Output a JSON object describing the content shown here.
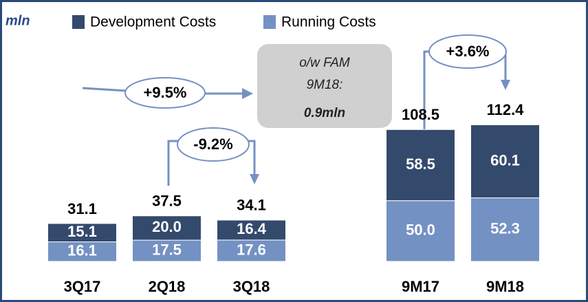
{
  "chart_data": {
    "type": "stacked_bar",
    "unit_label": "mln",
    "categories": [
      "3Q17",
      "2Q18",
      "3Q18",
      null,
      "9M17",
      "9M18"
    ],
    "series": [
      {
        "name": "Development Costs",
        "color": "#344a6c",
        "values": [
          15.1,
          20.0,
          16.4,
          null,
          58.5,
          60.1
        ],
        "value_labels": [
          "15.1",
          "20.0",
          "16.4",
          null,
          "58.5",
          "60.1"
        ]
      },
      {
        "name": "Running Costs",
        "color": "#7491c3",
        "values": [
          16.1,
          17.5,
          17.6,
          null,
          50.0,
          52.3
        ],
        "value_labels": [
          "16.1",
          "17.5",
          "17.6",
          null,
          "50.0",
          "52.3"
        ]
      }
    ],
    "totals": [
      31.1,
      37.5,
      34.1,
      null,
      108.5,
      112.4
    ],
    "ylim": [
      0,
      120
    ],
    "annotations": {
      "growth_yoy": "+9.5%",
      "growth_qoq": "-9.2%",
      "growth_9m": "+3.6%",
      "callout": [
        "o/w FAM",
        "9M18:",
        "0.9mln"
      ]
    }
  }
}
